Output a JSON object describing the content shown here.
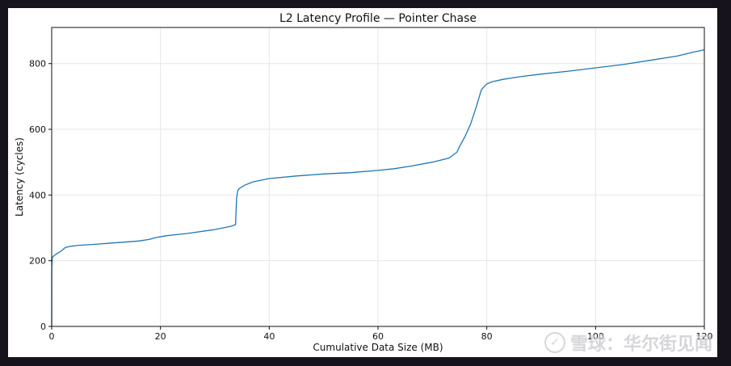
{
  "chart_data": {
    "type": "line",
    "title": "L2 Latency Profile — Pointer Chase",
    "xlabel": "Cumulative Data Size (MB)",
    "ylabel": "Latency (cycles)",
    "xlim": [
      0,
      120
    ],
    "ylim": [
      0,
      910
    ],
    "xticks": [
      0,
      20,
      40,
      60,
      80,
      100,
      120
    ],
    "yticks": [
      0,
      200,
      400,
      600,
      800
    ],
    "grid": true,
    "series": [
      {
        "color": "#1f77b4",
        "x": [
          0,
          0.02,
          0.1,
          0.4,
          1,
          1.8,
          2.5,
          3.5,
          5,
          8,
          12,
          16,
          18,
          19,
          21,
          25,
          30,
          33,
          33.8,
          34,
          34.2,
          34.5,
          35.5,
          37,
          40,
          45,
          50,
          55,
          60,
          63,
          66,
          70,
          73,
          74.5,
          75,
          76,
          77,
          78,
          79,
          79.5,
          80,
          81,
          83,
          86,
          90,
          95,
          100,
          105,
          110,
          115,
          118,
          120
        ],
        "y": [
          0,
          180,
          210,
          215,
          222,
          230,
          240,
          244,
          247,
          250,
          255,
          260,
          265,
          270,
          276,
          283,
          295,
          305,
          310,
          390,
          413,
          420,
          430,
          440,
          450,
          458,
          464,
          468,
          475,
          480,
          488,
          500,
          512,
          530,
          548,
          578,
          615,
          665,
          720,
          730,
          738,
          745,
          752,
          760,
          768,
          777,
          787,
          797,
          810,
          823,
          835,
          842
        ]
      }
    ]
  },
  "watermark": {
    "logo_glyph": "✓",
    "text": "雪球：华尔街见闻"
  }
}
